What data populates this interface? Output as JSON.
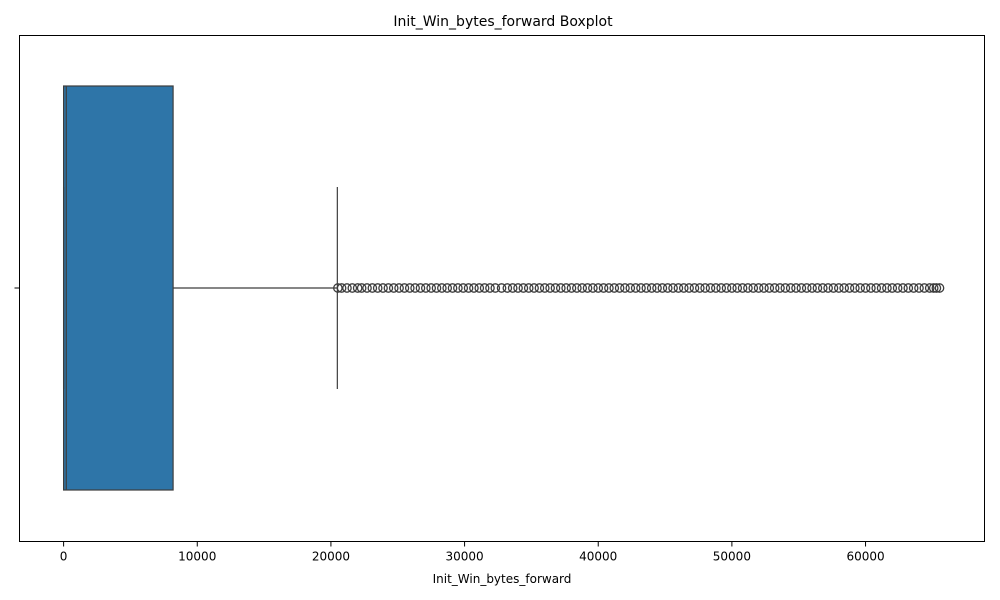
{
  "chart_data": {
    "type": "box",
    "title": "Init_Win_bytes_forward Boxplot",
    "xlabel": "Init_Win_bytes_forward",
    "ylabel": "",
    "orientation": "horizontal",
    "xlim": [
      -3300,
      68900
    ],
    "xticks": [
      0,
      10000,
      20000,
      30000,
      40000,
      50000,
      60000
    ],
    "xtick_labels": [
      "0",
      "10000",
      "20000",
      "30000",
      "40000",
      "50000",
      "60000"
    ],
    "grid": false,
    "box": {
      "min": -1,
      "q1": -1,
      "median": 200,
      "q3": 8192,
      "whisker_low": -1,
      "whisker_high": 20480,
      "outliers_range": [
        20500,
        65535
      ],
      "fill_color": "#2e75a8",
      "edge_color": "#3d3d3d"
    },
    "outliers": [
      20520,
      20800,
      21200,
      21600,
      22000,
      22300,
      22700,
      23100,
      23500,
      23900,
      24300,
      24700,
      25100,
      25500,
      25900,
      26300,
      26700,
      27100,
      27500,
      27900,
      28300,
      28700,
      29100,
      29500,
      29900,
      30300,
      30700,
      31100,
      31500,
      31900,
      32300,
      32768,
      33200,
      33600,
      34000,
      34400,
      34800,
      35200,
      35600,
      36000,
      36400,
      36800,
      37200,
      37600,
      38000,
      38400,
      38800,
      39200,
      39600,
      40000,
      40400,
      40800,
      41200,
      41600,
      42000,
      42400,
      42800,
      43200,
      43600,
      44000,
      44400,
      44800,
      45200,
      45600,
      46000,
      46400,
      46800,
      47200,
      47600,
      48000,
      48400,
      48800,
      49200,
      49600,
      50000,
      50400,
      50800,
      51200,
      51600,
      52000,
      52400,
      52800,
      53200,
      53600,
      54000,
      54400,
      54800,
      55200,
      55600,
      56000,
      56400,
      56800,
      57200,
      57600,
      58000,
      58400,
      58800,
      59200,
      59600,
      60000,
      60400,
      60800,
      61200,
      61600,
      62000,
      62400,
      62800,
      63200,
      63600,
      64000,
      64400,
      64800,
      65100,
      65300,
      65535
    ]
  }
}
